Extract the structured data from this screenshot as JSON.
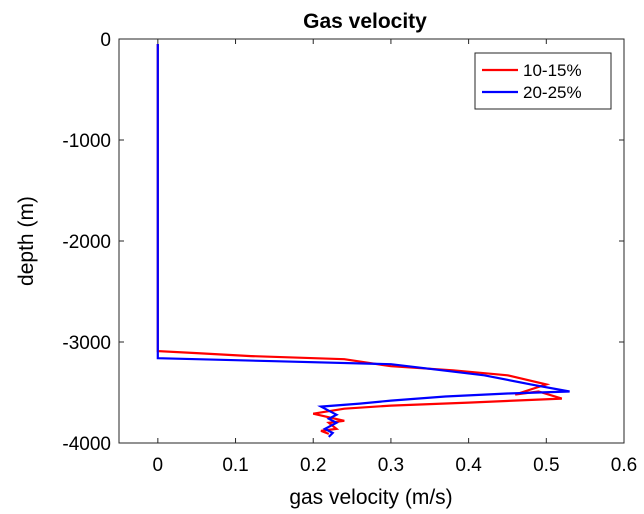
{
  "chart_data": {
    "type": "line",
    "title": "Gas velocity",
    "xlabel": "gas velocity (m/s)",
    "ylabel": "depth (m)",
    "xlim": [
      -0.05,
      0.6
    ],
    "ylim": [
      -4000,
      0
    ],
    "xticks": [
      0,
      0.1,
      0.2,
      0.3,
      0.4,
      0.5,
      0.6
    ],
    "xtick_labels": [
      "0",
      "0.1",
      "0.2",
      "0.3",
      "0.4",
      "0.5",
      "0.6"
    ],
    "yticks": [
      0,
      -1000,
      -2000,
      -3000,
      -4000
    ],
    "ytick_labels": [
      "0",
      "-1000",
      "-2000",
      "-3000",
      "-4000"
    ],
    "grid": false,
    "legend_position": "top-right",
    "series": [
      {
        "name": "10-15%",
        "color": "#ff0000",
        "x": [
          0,
          0,
          0.05,
          0.12,
          0.24,
          0.3,
          0.38,
          0.45,
          0.5,
          0.46,
          0.49,
          0.52,
          0.4,
          0.3,
          0.24,
          0.2,
          0.24,
          0.22,
          0.23,
          0.21,
          0.22
        ],
        "y": [
          -50,
          -3090,
          -3110,
          -3140,
          -3170,
          -3240,
          -3280,
          -3330,
          -3420,
          -3520,
          -3490,
          -3560,
          -3600,
          -3630,
          -3660,
          -3710,
          -3780,
          -3800,
          -3860,
          -3880,
          -3910
        ]
      },
      {
        "name": "20-25%",
        "color": "#0000ff",
        "x": [
          0,
          0,
          0.05,
          0.15,
          0.3,
          0.42,
          0.48,
          0.53,
          0.45,
          0.37,
          0.3,
          0.26,
          0.21,
          0.22,
          0.23,
          0.22,
          0.23,
          0.215,
          0.225,
          0.22
        ],
        "y": [
          -50,
          -3160,
          -3170,
          -3190,
          -3220,
          -3330,
          -3420,
          -3490,
          -3510,
          -3540,
          -3580,
          -3610,
          -3640,
          -3680,
          -3720,
          -3760,
          -3800,
          -3860,
          -3900,
          -3940
        ]
      }
    ]
  }
}
